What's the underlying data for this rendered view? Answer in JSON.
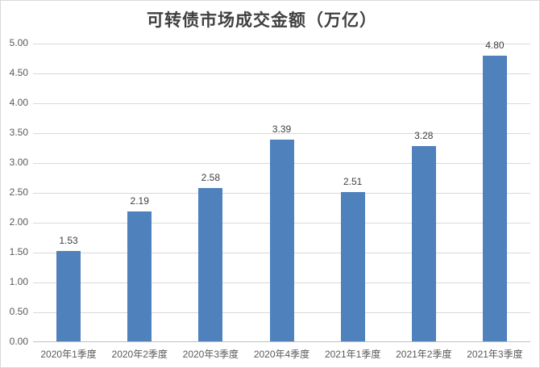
{
  "chart_data": {
    "type": "bar",
    "title": "可转债市场成交金额（万亿）",
    "categories": [
      "2020年1季度",
      "2020年2季度",
      "2020年3季度",
      "2020年4季度",
      "2021年1季度",
      "2021年2季度",
      "2021年3季度"
    ],
    "values": [
      1.53,
      2.19,
      2.58,
      3.39,
      2.51,
      3.28,
      4.8
    ],
    "value_labels": [
      "1.53",
      "2.19",
      "2.58",
      "3.39",
      "2.51",
      "3.28",
      "4.80"
    ],
    "xlabel": "",
    "ylabel": "",
    "ylim": [
      0,
      5
    ],
    "y_tick_step": 0.5,
    "y_ticks": [
      "0.00",
      "0.50",
      "1.00",
      "1.50",
      "2.00",
      "2.50",
      "3.00",
      "3.50",
      "4.00",
      "4.50",
      "5.00"
    ],
    "grid": true,
    "legend": "none",
    "colors": {
      "bar": "#4F81BD",
      "gridline": "#D9D9D9",
      "axis_line": "#BFBFBF",
      "title_text": "#404040",
      "value_label_text": "#404040",
      "tick_text": "#595959",
      "background": "#FFFFFF",
      "border": "#D9D9D9"
    }
  }
}
